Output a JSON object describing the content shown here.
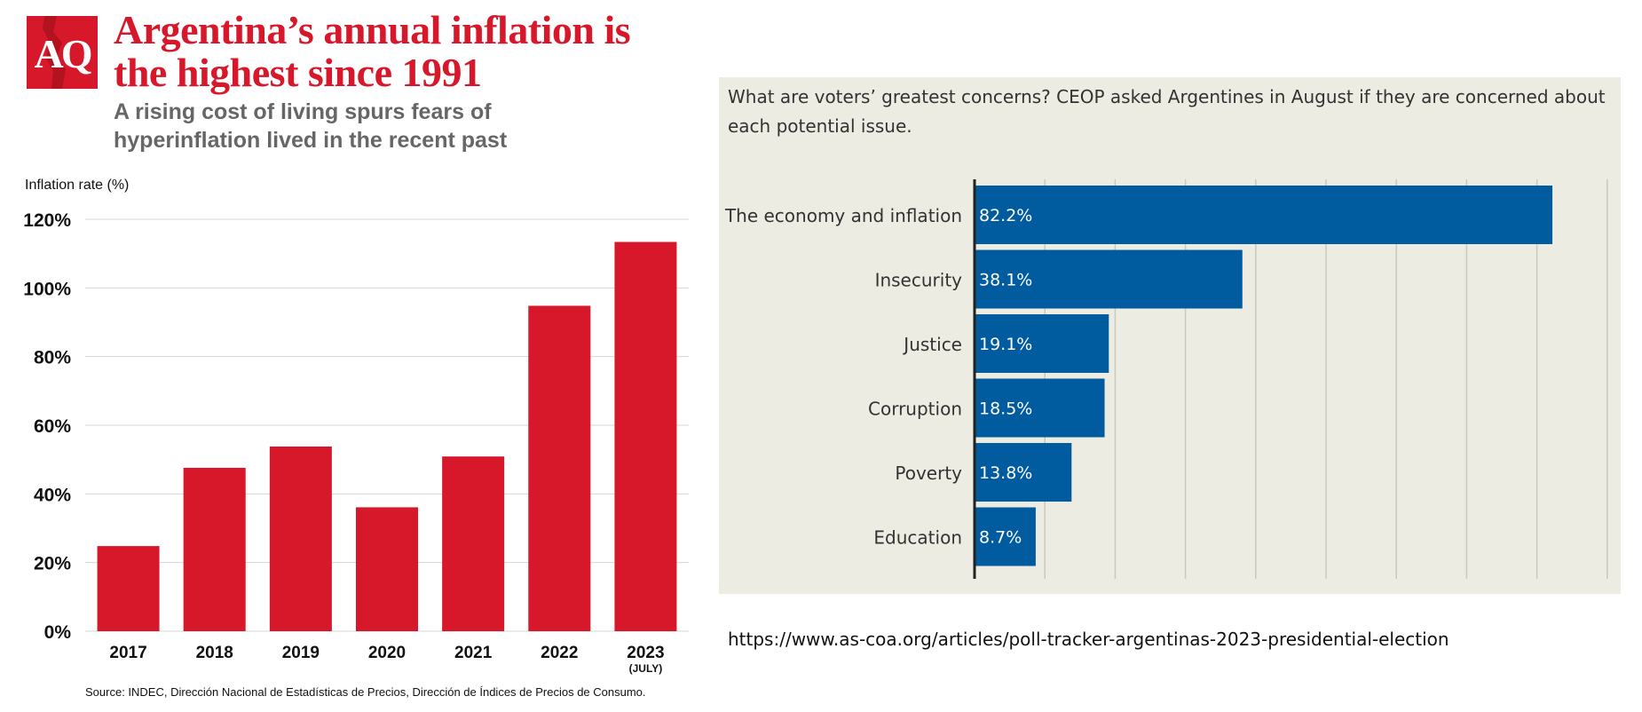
{
  "header": {
    "logo_text": "AQ",
    "title": "Argentina’s annual inflation is the highest since 1991",
    "subtitle": "A rising cost of living spurs fears of hyperinflation lived in the recent past"
  },
  "chart_data": [
    {
      "type": "bar",
      "ylabel": "Inflation rate (%)",
      "categories": [
        "2017",
        "2018",
        "2019",
        "2020",
        "2021",
        "2022",
        "2023"
      ],
      "category_notes": [
        "",
        "",
        "",
        "",
        "",
        "",
        "(JULY)"
      ],
      "values": [
        24.8,
        47.6,
        53.8,
        36.1,
        50.9,
        94.8,
        113.4
      ],
      "ylim": [
        0,
        120
      ],
      "yticks": [
        0,
        20,
        40,
        60,
        80,
        100,
        120
      ],
      "ytick_labels": [
        "0%",
        "20%",
        "40%",
        "60%",
        "80%",
        "100%",
        "120%"
      ],
      "grid": true,
      "color": "#d7182a"
    },
    {
      "type": "bar",
      "orientation": "horizontal",
      "title": "What are voters’ greatest concerns? CEOP asked Argentines in August if they are concerned about each potential issue.",
      "categories": [
        "The economy and inflation",
        "Insecurity",
        "Justice",
        "Corruption",
        "Poverty",
        "Education"
      ],
      "values": [
        82.2,
        38.1,
        19.1,
        18.5,
        13.8,
        8.7
      ],
      "value_labels": [
        "82.2%",
        "38.1%",
        "19.1%",
        "18.5%",
        "13.8%",
        "8.7%"
      ],
      "xlim": [
        0,
        90
      ],
      "grid": true,
      "color": "#005b9f",
      "background": "#ecece2"
    }
  ],
  "footer": {
    "source": "Source: INDEC, Dirección Nacional de Estadísticas de Precios, Dirección de Índices de Precios de Consumo.",
    "url": "https://www.as-coa.org/articles/poll-tracker-argentinas-2023-presidential-election"
  }
}
